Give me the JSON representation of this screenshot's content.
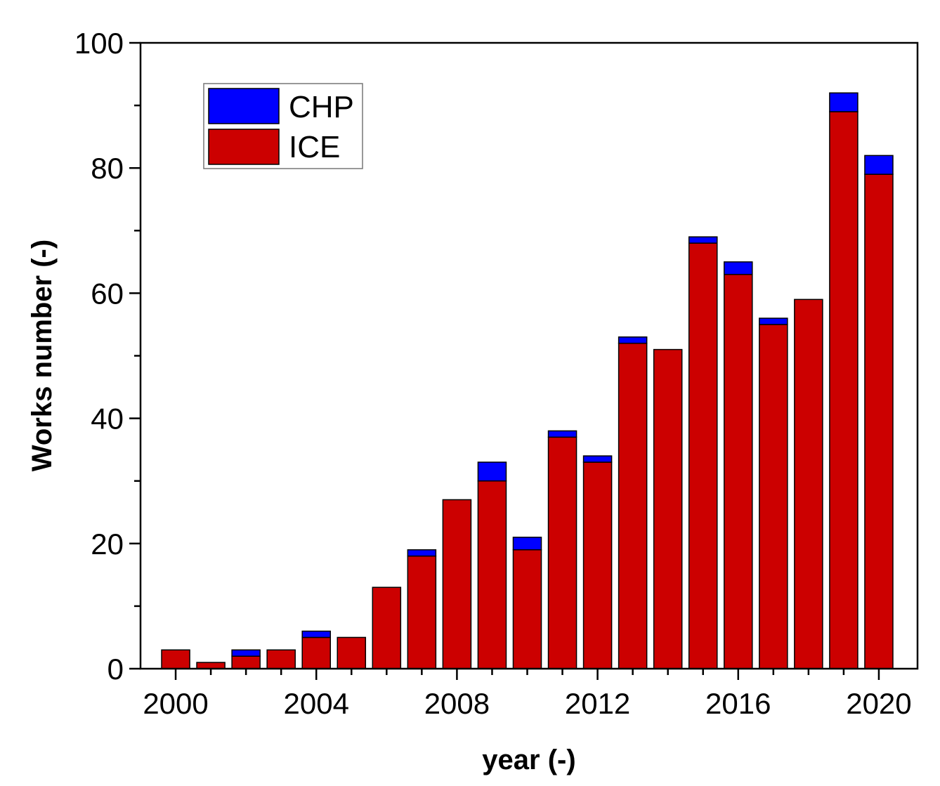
{
  "chart_data": {
    "type": "bar",
    "stacked": true,
    "title": "",
    "xlabel": "year (-)",
    "ylabel": "Works number (-)",
    "xlim": [
      1999,
      2021.1
    ],
    "ylim": [
      0,
      100
    ],
    "x_ticks": [
      2000,
      2004,
      2008,
      2012,
      2016,
      2020
    ],
    "x_tick_labels": [
      "2000",
      "2004",
      "2008",
      "2012",
      "2016",
      "2020"
    ],
    "y_ticks": [
      0,
      20,
      40,
      60,
      80,
      100
    ],
    "y_tick_labels": [
      "0",
      "20",
      "40",
      "60",
      "80",
      "100"
    ],
    "legend_position": "top-left",
    "categories": [
      2000,
      2001,
      2002,
      2003,
      2004,
      2005,
      2006,
      2007,
      2008,
      2009,
      2010,
      2011,
      2012,
      2013,
      2014,
      2015,
      2016,
      2017,
      2018,
      2019,
      2020
    ],
    "series": [
      {
        "name": "ICE",
        "color": "#cc0000",
        "values": [
          3,
          1,
          2,
          3,
          5,
          5,
          13,
          18,
          27,
          30,
          19,
          37,
          33,
          52,
          51,
          68,
          63,
          55,
          59,
          89,
          79
        ]
      },
      {
        "name": "CHP",
        "color": "#0000ff",
        "values": [
          0,
          0,
          1,
          0,
          1,
          0,
          0,
          1,
          0,
          3,
          2,
          1,
          1,
          1,
          0,
          1,
          2,
          1,
          0,
          3,
          3
        ]
      }
    ],
    "legend": [
      "CHP",
      "ICE"
    ]
  }
}
